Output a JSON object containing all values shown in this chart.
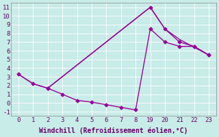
{
  "bg_color": "#c8ece8",
  "line_color": "#990099",
  "grid_color": "#ffffff",
  "xlabel": "Windchill (Refroidissement éolien,°C)",
  "xtick_labels": [
    "0",
    "1",
    "2",
    "3",
    "4",
    "5",
    "6",
    "7",
    "8",
    "19",
    "20",
    "21",
    "22",
    "23"
  ],
  "ytick_labels": [
    "-1",
    "0",
    "1",
    "2",
    "3",
    "4",
    "5",
    "6",
    "7",
    "8",
    "9",
    "10",
    "11"
  ],
  "ytick_vals": [
    -1,
    0,
    1,
    2,
    3,
    4,
    5,
    6,
    7,
    8,
    9,
    10,
    11
  ],
  "line1_x_idx": [
    0,
    1,
    2,
    9,
    10,
    11,
    12,
    13
  ],
  "line1_y": [
    3.3,
    2.2,
    1.7,
    11.0,
    8.5,
    7.0,
    6.5,
    5.5
  ],
  "line2_x_idx": [
    2,
    3,
    4,
    5,
    6,
    7,
    8,
    9,
    10,
    11,
    12,
    13
  ],
  "line2_y": [
    1.7,
    1.0,
    0.3,
    0.1,
    -0.2,
    -0.5,
    -0.8,
    8.5,
    7.0,
    6.5,
    6.5,
    5.5
  ],
  "line3_x_idx": [
    0,
    1,
    2,
    9,
    10,
    11,
    13
  ],
  "line3_y": [
    3.3,
    2.2,
    1.7,
    11.0,
    8.5,
    7.3,
    5.5
  ],
  "marker": "D",
  "markersize": 2.5,
  "linewidth": 1.0,
  "fontsize_label": 7,
  "fontsize_tick": 6.5
}
